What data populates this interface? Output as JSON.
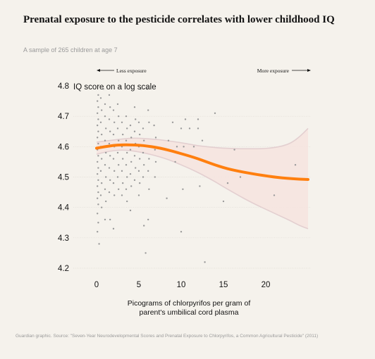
{
  "title": "Prenatal exposure to the pesticide correlates with lower childhood IQ",
  "subtitle": "A sample of 265 children at age 7",
  "source": "Guardian graphic. Source: \"Seven-Year Neurodevelopmental Scores and Prenatal Exposure to Chlorpyrifos, a Common Agricultural Pesticide\" (2011)",
  "colors": {
    "background": "#f5f2ec",
    "points": "#9a9a9a",
    "fit_line": "#ff7f0f",
    "band_fill": "#f6e4df",
    "band_edge": "#e3cfd0"
  },
  "chart_data": {
    "type": "scatter",
    "x_axis": {
      "label_line1": "Picograms of chlorpyrifos per gram of",
      "label_line2": "parent's umbilical cord plasma",
      "range": [
        0,
        25
      ],
      "ticks": [
        {
          "label": "0",
          "value": 0
        },
        {
          "label": "5",
          "value": 5
        },
        {
          "label": "10",
          "value": 10
        },
        {
          "label": "15",
          "value": 15
        },
        {
          "label": "20",
          "value": 20
        }
      ]
    },
    "y_axis": {
      "scale": "log",
      "label": "IQ score on a log scale",
      "range": [
        4.2,
        4.85
      ],
      "ticks": [
        {
          "label": "4.8",
          "value": 4.8
        },
        {
          "label": "4.7",
          "value": 4.7
        },
        {
          "label": "4.6",
          "value": 4.6
        },
        {
          "label": "4.5",
          "value": 4.5
        },
        {
          "label": "4.4",
          "value": 4.4
        },
        {
          "label": "4.3",
          "value": 4.3
        },
        {
          "label": "4.2",
          "value": 4.2
        }
      ]
    },
    "annotations": {
      "less_exposure": "Less exposure",
      "more_exposure": "More exposure"
    },
    "fit": {
      "x": [
        0,
        1,
        2,
        3,
        4,
        5,
        6,
        7,
        8,
        9,
        10,
        11,
        12,
        13,
        14,
        15,
        16,
        17,
        18,
        19,
        20,
        21,
        22,
        23,
        24,
        25
      ],
      "y": [
        4.595,
        4.6,
        4.604,
        4.606,
        4.606,
        4.605,
        4.602,
        4.598,
        4.592,
        4.585,
        4.577,
        4.569,
        4.56,
        4.55,
        4.54,
        4.531,
        4.524,
        4.518,
        4.513,
        4.508,
        4.504,
        4.5,
        4.497,
        4.495,
        4.493,
        4.492
      ],
      "ci_upper": [
        4.615,
        4.618,
        4.622,
        4.625,
        4.628,
        4.628,
        4.626,
        4.624,
        4.621,
        4.617,
        4.613,
        4.608,
        4.603,
        4.6,
        4.597,
        4.595,
        4.594,
        4.593,
        4.593,
        4.593,
        4.594,
        4.597,
        4.602,
        4.612,
        4.632,
        4.66
      ],
      "ci_lower": [
        4.575,
        4.582,
        4.587,
        4.589,
        4.587,
        4.583,
        4.577,
        4.57,
        4.562,
        4.552,
        4.54,
        4.528,
        4.515,
        4.5,
        4.485,
        4.468,
        4.452,
        4.436,
        4.421,
        4.407,
        4.394,
        4.381,
        4.368,
        4.355,
        4.34,
        4.33
      ]
    },
    "points": [
      [
        0.8,
        4.79
      ],
      [
        12.0,
        4.69
      ],
      [
        10.5,
        4.69
      ],
      [
        5.2,
        4.79
      ],
      [
        6.0,
        4.79
      ],
      [
        0.2,
        4.77
      ],
      [
        0.1,
        4.75
      ],
      [
        0.2,
        4.73
      ],
      [
        0.1,
        4.71
      ],
      [
        0.2,
        4.69
      ],
      [
        0.1,
        4.67
      ],
      [
        0.2,
        4.65
      ],
      [
        0.1,
        4.63
      ],
      [
        0.2,
        4.61
      ],
      [
        0.1,
        4.59
      ],
      [
        0.2,
        4.57
      ],
      [
        0.1,
        4.55
      ],
      [
        0.2,
        4.53
      ],
      [
        0.1,
        4.51
      ],
      [
        0.2,
        4.49
      ],
      [
        0.1,
        4.47
      ],
      [
        0.2,
        4.45
      ],
      [
        0.1,
        4.43
      ],
      [
        0.2,
        4.41
      ],
      [
        0.1,
        4.38
      ],
      [
        0.2,
        4.35
      ],
      [
        0.1,
        4.32
      ],
      [
        0.3,
        4.28
      ],
      [
        0.5,
        4.76
      ],
      [
        0.6,
        4.72
      ],
      [
        0.5,
        4.68
      ],
      [
        0.6,
        4.64
      ],
      [
        0.5,
        4.6
      ],
      [
        0.6,
        4.56
      ],
      [
        0.5,
        4.52
      ],
      [
        0.6,
        4.48
      ],
      [
        0.5,
        4.44
      ],
      [
        0.6,
        4.4
      ],
      [
        1.0,
        4.74
      ],
      [
        1.0,
        4.7
      ],
      [
        1.1,
        4.66
      ],
      [
        1.0,
        4.62
      ],
      [
        1.1,
        4.58
      ],
      [
        1.0,
        4.54
      ],
      [
        1.1,
        4.5
      ],
      [
        1.0,
        4.46
      ],
      [
        1.1,
        4.42
      ],
      [
        1.0,
        4.36
      ],
      [
        1.5,
        4.77
      ],
      [
        1.6,
        4.73
      ],
      [
        1.5,
        4.69
      ],
      [
        1.6,
        4.65
      ],
      [
        1.5,
        4.61
      ],
      [
        1.6,
        4.57
      ],
      [
        1.5,
        4.53
      ],
      [
        1.6,
        4.49
      ],
      [
        1.5,
        4.45
      ],
      [
        1.6,
        4.36
      ],
      [
        2.0,
        4.72
      ],
      [
        2.1,
        4.68
      ],
      [
        2.0,
        4.64
      ],
      [
        2.1,
        4.6
      ],
      [
        2.0,
        4.56
      ],
      [
        2.1,
        4.52
      ],
      [
        2.0,
        4.48
      ],
      [
        2.1,
        4.44
      ],
      [
        2.0,
        4.33
      ],
      [
        2.5,
        4.74
      ],
      [
        2.6,
        4.7
      ],
      [
        2.5,
        4.66
      ],
      [
        2.6,
        4.62
      ],
      [
        2.5,
        4.58
      ],
      [
        2.6,
        4.54
      ],
      [
        2.5,
        4.5
      ],
      [
        2.6,
        4.46
      ],
      [
        3.0,
        4.68
      ],
      [
        3.1,
        4.64
      ],
      [
        3.0,
        4.6
      ],
      [
        3.1,
        4.56
      ],
      [
        3.0,
        4.52
      ],
      [
        3.1,
        4.48
      ],
      [
        3.0,
        4.44
      ],
      [
        3.5,
        4.7
      ],
      [
        3.6,
        4.66
      ],
      [
        3.5,
        4.62
      ],
      [
        3.6,
        4.58
      ],
      [
        3.5,
        4.54
      ],
      [
        3.6,
        4.5
      ],
      [
        3.5,
        4.46
      ],
      [
        3.6,
        4.42
      ],
      [
        4.0,
        4.67
      ],
      [
        4.1,
        4.63
      ],
      [
        4.0,
        4.59
      ],
      [
        4.1,
        4.55
      ],
      [
        4.0,
        4.51
      ],
      [
        4.1,
        4.47
      ],
      [
        4.0,
        4.39
      ],
      [
        4.5,
        4.73
      ],
      [
        4.6,
        4.69
      ],
      [
        4.5,
        4.65
      ],
      [
        4.6,
        4.61
      ],
      [
        4.5,
        4.57
      ],
      [
        4.6,
        4.53
      ],
      [
        4.5,
        4.49
      ],
      [
        5.0,
        4.68
      ],
      [
        5.1,
        4.64
      ],
      [
        5.0,
        4.6
      ],
      [
        5.1,
        4.56
      ],
      [
        5.0,
        4.52
      ],
      [
        5.1,
        4.48
      ],
      [
        5.0,
        4.44
      ],
      [
        5.5,
        4.66
      ],
      [
        5.6,
        4.62
      ],
      [
        5.5,
        4.58
      ],
      [
        5.6,
        4.54
      ],
      [
        5.5,
        4.5
      ],
      [
        5.6,
        4.34
      ],
      [
        6.1,
        4.72
      ],
      [
        6.2,
        4.68
      ],
      [
        6.1,
        4.6
      ],
      [
        6.2,
        4.56
      ],
      [
        6.1,
        4.52
      ],
      [
        6.2,
        4.46
      ],
      [
        6.1,
        4.36
      ],
      [
        5.8,
        4.25
      ],
      [
        6.8,
        4.67
      ],
      [
        7.0,
        4.63
      ],
      [
        6.9,
        4.59
      ],
      [
        7.0,
        4.55
      ],
      [
        6.9,
        4.5
      ],
      [
        8.3,
        4.43
      ],
      [
        8.5,
        4.62
      ],
      [
        9.0,
        4.68
      ],
      [
        9.5,
        4.6
      ],
      [
        9.3,
        4.55
      ],
      [
        10.0,
        4.66
      ],
      [
        10.3,
        4.6
      ],
      [
        10.2,
        4.46
      ],
      [
        10.0,
        4.32
      ],
      [
        11.0,
        4.66
      ],
      [
        11.5,
        4.6
      ],
      [
        12.0,
        4.66
      ],
      [
        12.5,
        4.62
      ],
      [
        12.2,
        4.47
      ],
      [
        12.8,
        4.22
      ],
      [
        14.0,
        4.71
      ],
      [
        15.0,
        4.42
      ],
      [
        15.5,
        4.48
      ],
      [
        16.3,
        4.59
      ],
      [
        17.0,
        4.5
      ],
      [
        21.0,
        4.44
      ],
      [
        23.5,
        4.54
      ]
    ]
  }
}
